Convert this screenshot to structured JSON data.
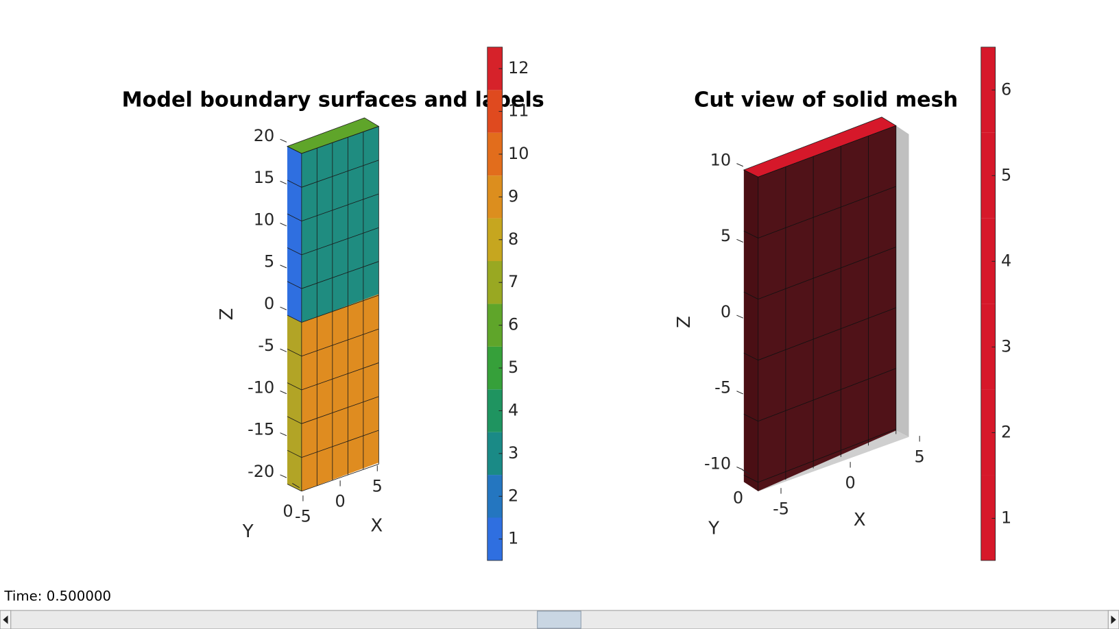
{
  "left": {
    "title": "Model boundary surfaces and labels",
    "zlabel": "Z",
    "ylabel": "Y",
    "xlabel": "X",
    "zticks": [
      20,
      15,
      10,
      5,
      0,
      -5,
      -10,
      -15,
      -20
    ],
    "xticks": [
      -5,
      0,
      5
    ],
    "yticks": [
      0
    ],
    "colorbar_ticks": [
      1,
      2,
      3,
      4,
      5,
      6,
      7,
      8,
      9,
      10,
      11,
      12
    ],
    "colorbar_colors": [
      "#2f6fe0",
      "#2476c0",
      "#1a8a86",
      "#1f9460",
      "#36a03a",
      "#5fa52a",
      "#99a822",
      "#c6a61f",
      "#dc8e1e",
      "#e26d1c",
      "#df4a1f",
      "#d6222a"
    ]
  },
  "right": {
    "title": "Cut view of solid mesh",
    "zlabel": "Z",
    "ylabel": "Y",
    "xlabel": "X",
    "zticks": [
      10,
      5,
      0,
      -5,
      -10
    ],
    "xticks": [
      -5,
      0,
      5
    ],
    "yticks": [
      0
    ],
    "colorbar_ticks": [
      1,
      2,
      3,
      4,
      5,
      6
    ],
    "colorbar_color": "#d6182a"
  },
  "status": "Time: 0.500000"
}
